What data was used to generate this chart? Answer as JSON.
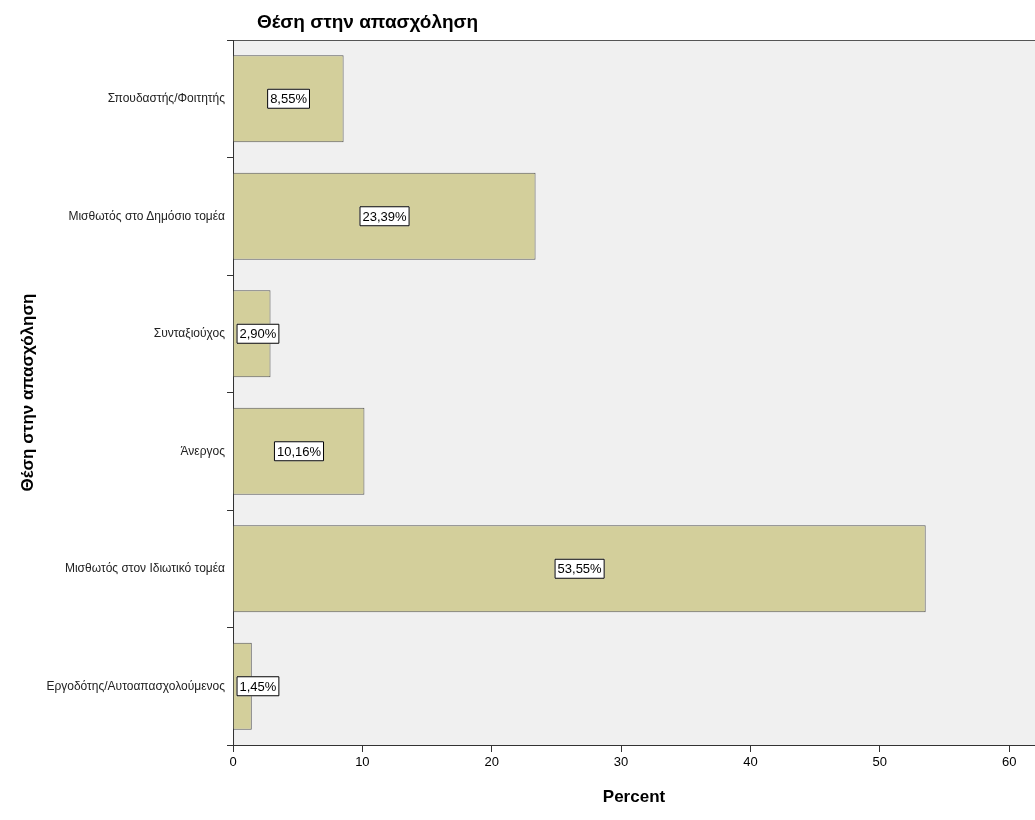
{
  "chart_data": {
    "type": "bar",
    "orientation": "horizontal",
    "title": "Θέση στην απασχόληση",
    "xlabel": "Percent",
    "ylabel": "Θέση στην απασχόληση",
    "categories": [
      "Σπουδαστής/Φοιτητής",
      "Μισθωτός στο Δημόσιο τομέα",
      "Συνταξιούχος",
      "Άνεργος",
      "Μισθωτός στον Ιδιωτικό τομέα",
      "Εργοδότης/Αυτοαπασχολούμενος"
    ],
    "values": [
      8.55,
      23.39,
      2.9,
      10.16,
      53.55,
      1.45
    ],
    "value_labels": [
      "8,55%",
      "23,39%",
      "2,90%",
      "10,16%",
      "53,55%",
      "1,45%"
    ],
    "color": "#d3cf9b",
    "xlim": [
      0,
      62
    ],
    "xticks": [
      0,
      10,
      20,
      30,
      40,
      50,
      60
    ],
    "grid": false,
    "legend": false
  }
}
